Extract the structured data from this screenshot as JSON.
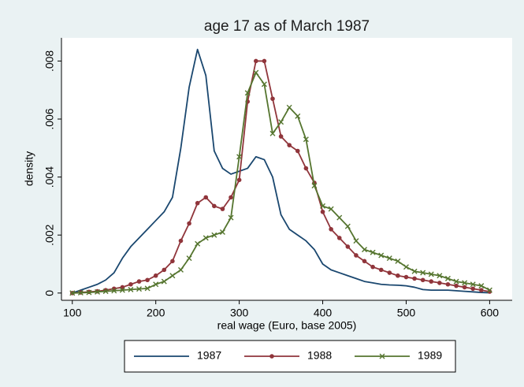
{
  "chart_data": {
    "type": "line",
    "title": "age 17 as of March 1987",
    "xlabel": "real wage (Euro, base 2005)",
    "ylabel": "density",
    "x": [
      100,
      110,
      120,
      130,
      140,
      150,
      160,
      170,
      180,
      190,
      200,
      210,
      220,
      230,
      240,
      250,
      260,
      270,
      280,
      290,
      300,
      310,
      320,
      330,
      340,
      350,
      360,
      370,
      380,
      390,
      400,
      410,
      420,
      430,
      440,
      450,
      460,
      470,
      480,
      490,
      500,
      510,
      520,
      530,
      540,
      550,
      560,
      570,
      580,
      590,
      600
    ],
    "series": [
      {
        "name": "1987",
        "color": "#1a476f",
        "marker": "none",
        "values": [
          0,
          0.0001,
          0.0002,
          0.0003,
          0.00045,
          0.0007,
          0.0012,
          0.0016,
          0.0019,
          0.0022,
          0.0025,
          0.0028,
          0.0033,
          0.005,
          0.0071,
          0.0084,
          0.0075,
          0.0049,
          0.0043,
          0.0041,
          0.0042,
          0.0043,
          0.0047,
          0.0046,
          0.004,
          0.0027,
          0.0022,
          0.002,
          0.0018,
          0.0015,
          0.001,
          0.0008,
          0.0007,
          0.0006,
          0.0005,
          0.0004,
          0.00035,
          0.0003,
          0.00028,
          0.00027,
          0.00025,
          0.0002,
          0.00012,
          0.0001,
          0.0001,
          0.0001,
          8e-05,
          6e-05,
          4e-05,
          2e-05,
          1e-05
        ]
      },
      {
        "name": "1988",
        "color": "#90353b",
        "marker": "circle",
        "values": [
          0,
          2e-05,
          4e-05,
          6e-05,
          0.0001,
          0.00015,
          0.0002,
          0.0003,
          0.0004,
          0.00045,
          0.0006,
          0.0008,
          0.0011,
          0.0018,
          0.0024,
          0.0031,
          0.0033,
          0.003,
          0.0029,
          0.0033,
          0.0039,
          0.0066,
          0.008,
          0.008,
          0.0067,
          0.0054,
          0.0051,
          0.0049,
          0.0043,
          0.0038,
          0.0028,
          0.0022,
          0.0019,
          0.0016,
          0.0013,
          0.0011,
          0.0009,
          0.0008,
          0.0007,
          0.0006,
          0.00055,
          0.0005,
          0.00045,
          0.0004,
          0.00035,
          0.0003,
          0.00025,
          0.0002,
          0.00015,
          0.0001,
          5e-05
        ]
      },
      {
        "name": "1989",
        "color": "#55752f",
        "marker": "x",
        "values": [
          0,
          1e-05,
          2e-05,
          4e-05,
          6e-05,
          8e-05,
          0.0001,
          0.00012,
          0.00014,
          0.00016,
          0.0003,
          0.0004,
          0.0006,
          0.0008,
          0.0012,
          0.0017,
          0.0019,
          0.002,
          0.0021,
          0.0026,
          0.0047,
          0.0069,
          0.0076,
          0.0072,
          0.0055,
          0.0059,
          0.0064,
          0.0061,
          0.0053,
          0.0037,
          0.003,
          0.0029,
          0.0026,
          0.0023,
          0.0018,
          0.0015,
          0.0014,
          0.0013,
          0.0012,
          0.0011,
          0.0009,
          0.00075,
          0.0007,
          0.00065,
          0.0006,
          0.0005,
          0.0004,
          0.00035,
          0.0003,
          0.00025,
          0.0001
        ]
      }
    ],
    "xlim": [
      87,
      627
    ],
    "ylim": [
      -0.00025,
      0.0088
    ],
    "xticks": [
      100,
      200,
      300,
      400,
      500,
      600
    ],
    "yticks": [
      0,
      {
        "value": 0.002,
        "label": ".002"
      },
      {
        "value": 0.004,
        "label": ".004"
      },
      {
        "value": 0.006,
        "label": ".006"
      },
      {
        "value": 0.008,
        "label": ".008"
      }
    ],
    "grid": false,
    "legend": "bottom"
  }
}
